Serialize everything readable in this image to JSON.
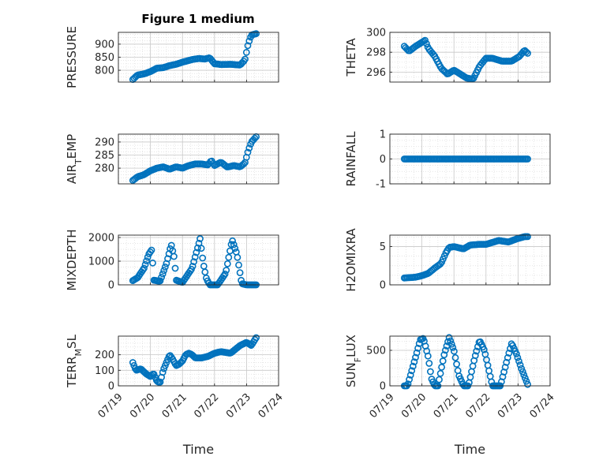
{
  "figure": {
    "title": "Figure 1 medium",
    "marker_color": "#0072BD"
  },
  "chart_data": [
    {
      "type": "scatter",
      "ylabel": "PRESSURE",
      "xlabel": "",
      "xlim": [
        0,
        5
      ],
      "ylim": [
        755,
        945
      ],
      "yticks": [
        800,
        850,
        900
      ],
      "ytick_labels": [
        "800",
        "850",
        "900"
      ],
      "xticks": [
        0,
        1,
        2,
        3,
        4,
        5
      ],
      "xtick_labels": [
        "",
        "",
        "",
        "",
        "",
        ""
      ],
      "grid": true,
      "minor_grid": true,
      "keypoints": [
        [
          0.45,
          765
        ],
        [
          0.6,
          782
        ],
        [
          0.8,
          786
        ],
        [
          1.0,
          795
        ],
        [
          1.2,
          808
        ],
        [
          1.4,
          810
        ],
        [
          1.6,
          818
        ],
        [
          1.8,
          823
        ],
        [
          2.0,
          831
        ],
        [
          2.3,
          841
        ],
        [
          2.5,
          845
        ],
        [
          2.7,
          843
        ],
        [
          2.85,
          848
        ],
        [
          3.0,
          825
        ],
        [
          3.2,
          822
        ],
        [
          3.5,
          823
        ],
        [
          3.8,
          820
        ],
        [
          3.95,
          840
        ],
        [
          4.05,
          900
        ],
        [
          4.15,
          935
        ],
        [
          4.3,
          940
        ]
      ],
      "n_points": 90
    },
    {
      "type": "scatter",
      "ylabel": "THETA",
      "xlabel": "",
      "xlim": [
        0,
        5
      ],
      "ylim": [
        295.0,
        300.0
      ],
      "yticks": [
        296,
        298,
        300
      ],
      "ytick_labels": [
        "296",
        "298",
        "300"
      ],
      "xticks": [
        0,
        1,
        2,
        3,
        4,
        5
      ],
      "xtick_labels": [
        "",
        "",
        "",
        "",
        "",
        ""
      ],
      "grid": true,
      "minor_grid": true,
      "keypoints": [
        [
          0.45,
          298.6
        ],
        [
          0.6,
          298.1
        ],
        [
          0.8,
          298.6
        ],
        [
          1.0,
          299.0
        ],
        [
          1.1,
          299.2
        ],
        [
          1.2,
          298.4
        ],
        [
          1.4,
          297.6
        ],
        [
          1.6,
          296.4
        ],
        [
          1.8,
          295.8
        ],
        [
          2.0,
          296.2
        ],
        [
          2.2,
          295.8
        ],
        [
          2.4,
          295.4
        ],
        [
          2.6,
          295.3
        ],
        [
          2.8,
          296.6
        ],
        [
          3.0,
          297.4
        ],
        [
          3.2,
          297.4
        ],
        [
          3.5,
          297.1
        ],
        [
          3.8,
          297.1
        ],
        [
          4.05,
          297.6
        ],
        [
          4.2,
          298.2
        ],
        [
          4.3,
          297.9
        ]
      ],
      "n_points": 90
    },
    {
      "type": "scatter",
      "ylabel": "AIR_TEMP",
      "ylabel_main": "AIR",
      "ylabel_sub": "T",
      "ylabel_rest": "EMP",
      "xlabel": "",
      "xlim": [
        0,
        5
      ],
      "ylim": [
        274,
        293
      ],
      "yticks": [
        280,
        285,
        290
      ],
      "ytick_labels": [
        "280",
        "285",
        "290"
      ],
      "xticks": [
        0,
        1,
        2,
        3,
        4,
        5
      ],
      "xtick_labels": [
        "",
        "",
        "",
        "",
        "",
        ""
      ],
      "grid": true,
      "minor_grid": true,
      "keypoints": [
        [
          0.45,
          275.3
        ],
        [
          0.6,
          276.7
        ],
        [
          0.8,
          277.5
        ],
        [
          1.0,
          279.0
        ],
        [
          1.2,
          280.0
        ],
        [
          1.4,
          280.5
        ],
        [
          1.6,
          279.6
        ],
        [
          1.8,
          280.5
        ],
        [
          2.0,
          280.0
        ],
        [
          2.2,
          281.0
        ],
        [
          2.4,
          281.6
        ],
        [
          2.6,
          281.6
        ],
        [
          2.8,
          281.2
        ],
        [
          2.9,
          283.0
        ],
        [
          3.0,
          281.0
        ],
        [
          3.2,
          282.3
        ],
        [
          3.4,
          280.4
        ],
        [
          3.6,
          281.0
        ],
        [
          3.8,
          280.5
        ],
        [
          3.95,
          282.0
        ],
        [
          4.05,
          286.5
        ],
        [
          4.15,
          290.0
        ],
        [
          4.3,
          292.0
        ]
      ],
      "n_points": 90
    },
    {
      "type": "scatter",
      "ylabel": "RAINFALL",
      "xlabel": "",
      "xlim": [
        0,
        5
      ],
      "ylim": [
        -1,
        1
      ],
      "yticks": [
        -1,
        0,
        1
      ],
      "ytick_labels": [
        "-1",
        "0",
        "1"
      ],
      "xticks": [
        0,
        1,
        2,
        3,
        4,
        5
      ],
      "xtick_labels": [
        "",
        "",
        "",
        "",
        "",
        ""
      ],
      "grid": true,
      "minor_grid": true,
      "keypoints": [
        [
          0.45,
          0
        ],
        [
          4.3,
          0
        ]
      ],
      "n_points": 90
    },
    {
      "type": "scatter",
      "ylabel": "MIXDEPTH",
      "xlabel": "",
      "xlim": [
        0,
        5
      ],
      "ylim": [
        0,
        2100
      ],
      "yticks": [
        0,
        1000,
        2000
      ],
      "ytick_labels": [
        "0",
        "1000",
        "2000"
      ],
      "xticks": [
        0,
        1,
        2,
        3,
        4,
        5
      ],
      "xtick_labels": [
        "",
        "",
        "",
        "",
        "",
        ""
      ],
      "grid": true,
      "minor_grid": true,
      "keypoints": [
        [
          0.45,
          180
        ],
        [
          0.6,
          300
        ],
        [
          0.8,
          700
        ],
        [
          0.95,
          1300
        ],
        [
          1.05,
          1500
        ],
        [
          1.1,
          200
        ],
        [
          1.3,
          150
        ],
        [
          1.5,
          900
        ],
        [
          1.65,
          1700
        ],
        [
          1.75,
          1100
        ],
        [
          1.8,
          200
        ],
        [
          2.0,
          100
        ],
        [
          2.3,
          700
        ],
        [
          2.55,
          1950
        ],
        [
          2.65,
          900
        ],
        [
          2.75,
          250
        ],
        [
          2.85,
          0
        ],
        [
          3.1,
          0
        ],
        [
          3.35,
          500
        ],
        [
          3.55,
          1900
        ],
        [
          3.7,
          1300
        ],
        [
          3.85,
          50
        ],
        [
          4.0,
          0
        ],
        [
          4.3,
          0
        ]
      ],
      "n_points": 100
    },
    {
      "type": "scatter",
      "ylabel": "H2OMIXRA",
      "xlabel": "",
      "xlim": [
        0,
        5
      ],
      "ylim": [
        0,
        6.5
      ],
      "yticks": [
        0,
        5
      ],
      "ytick_labels": [
        "0",
        "5"
      ],
      "xticks": [
        0,
        1,
        2,
        3,
        4,
        5
      ],
      "xtick_labels": [
        "",
        "",
        "",
        "",
        "",
        ""
      ],
      "grid": true,
      "minor_grid": true,
      "keypoints": [
        [
          0.45,
          0.9
        ],
        [
          0.8,
          1.0
        ],
        [
          1.0,
          1.2
        ],
        [
          1.2,
          1.5
        ],
        [
          1.4,
          2.2
        ],
        [
          1.6,
          2.8
        ],
        [
          1.75,
          4.2
        ],
        [
          1.85,
          4.9
        ],
        [
          2.0,
          5.0
        ],
        [
          2.3,
          4.7
        ],
        [
          2.5,
          5.2
        ],
        [
          2.8,
          5.3
        ],
        [
          3.0,
          5.3
        ],
        [
          3.4,
          5.8
        ],
        [
          3.7,
          5.6
        ],
        [
          3.95,
          6.0
        ],
        [
          4.2,
          6.3
        ],
        [
          4.3,
          6.3
        ]
      ],
      "n_points": 90
    },
    {
      "type": "scatter",
      "ylabel": "TERR_MSL",
      "ylabel_main": "TERR",
      "ylabel_sub": "M",
      "ylabel_rest": "SL",
      "xlabel": "Time",
      "xlim": [
        0,
        5
      ],
      "ylim": [
        0,
        320
      ],
      "yticks": [
        0,
        100,
        200
      ],
      "ytick_labels": [
        "0",
        "100",
        "200"
      ],
      "xticks": [
        0,
        1,
        2,
        3,
        4,
        5
      ],
      "xtick_labels": [
        "07/19",
        "07/20",
        "07/21",
        "07/22",
        "07/23",
        "07/24"
      ],
      "grid": true,
      "minor_grid": true,
      "keypoints": [
        [
          0.45,
          150
        ],
        [
          0.55,
          100
        ],
        [
          0.7,
          110
        ],
        [
          0.85,
          80
        ],
        [
          1.0,
          60
        ],
        [
          1.1,
          80
        ],
        [
          1.2,
          30
        ],
        [
          1.3,
          20
        ],
        [
          1.4,
          100
        ],
        [
          1.5,
          150
        ],
        [
          1.6,
          200
        ],
        [
          1.7,
          170
        ],
        [
          1.8,
          130
        ],
        [
          1.9,
          140
        ],
        [
          2.0,
          160
        ],
        [
          2.1,
          200
        ],
        [
          2.2,
          210
        ],
        [
          2.3,
          200
        ],
        [
          2.4,
          180
        ],
        [
          2.6,
          180
        ],
        [
          2.8,
          190
        ],
        [
          3.0,
          210
        ],
        [
          3.2,
          220
        ],
        [
          3.5,
          210
        ],
        [
          3.8,
          260
        ],
        [
          4.0,
          280
        ],
        [
          4.15,
          260
        ],
        [
          4.3,
          310
        ]
      ],
      "n_points": 100
    },
    {
      "type": "scatter",
      "ylabel": "SUN_FLUX",
      "ylabel_main": "SUN",
      "ylabel_sub": "F",
      "ylabel_rest": "LUX",
      "xlabel": "Time",
      "xlim": [
        0,
        5
      ],
      "ylim": [
        0,
        700
      ],
      "yticks": [
        0,
        500
      ],
      "ytick_labels": [
        "0",
        "500"
      ],
      "xticks": [
        0,
        1,
        2,
        3,
        4,
        5
      ],
      "xtick_labels": [
        "07/19",
        "07/20",
        "07/21",
        "07/22",
        "07/23",
        "07/24"
      ],
      "grid": true,
      "minor_grid": true,
      "keypoints": [
        [
          0.45,
          0
        ],
        [
          0.55,
          0
        ],
        [
          0.8,
          400
        ],
        [
          0.95,
          650
        ],
        [
          1.05,
          670
        ],
        [
          1.2,
          400
        ],
        [
          1.3,
          100
        ],
        [
          1.4,
          0
        ],
        [
          1.5,
          0
        ],
        [
          1.7,
          450
        ],
        [
          1.85,
          680
        ],
        [
          2.0,
          500
        ],
        [
          2.15,
          150
        ],
        [
          2.3,
          0
        ],
        [
          2.45,
          0
        ],
        [
          2.65,
          400
        ],
        [
          2.8,
          640
        ],
        [
          2.95,
          500
        ],
        [
          3.1,
          200
        ],
        [
          3.2,
          0
        ],
        [
          3.45,
          0
        ],
        [
          3.65,
          350
        ],
        [
          3.8,
          600
        ],
        [
          3.95,
          450
        ],
        [
          4.1,
          250
        ],
        [
          4.3,
          20
        ]
      ],
      "n_points": 100
    }
  ]
}
